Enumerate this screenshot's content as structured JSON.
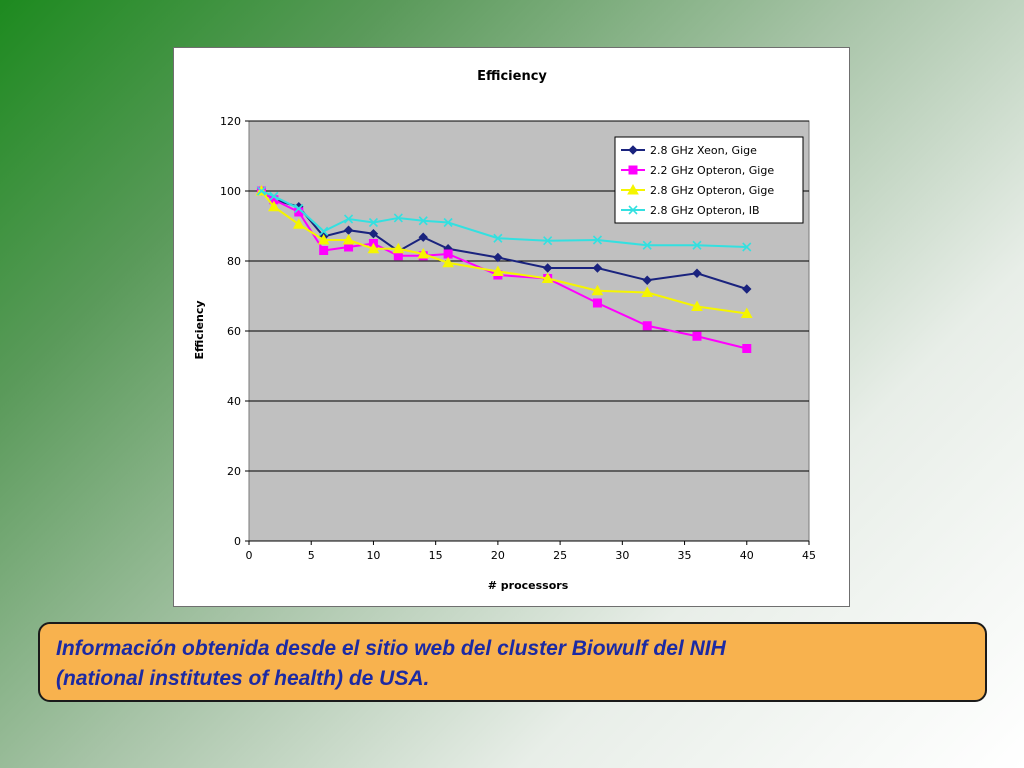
{
  "caption": {
    "line1": "Información obtenida desde el sitio web del cluster Biowulf del NIH",
    "line2": "(national institutes of health) de USA."
  },
  "chart_data": {
    "type": "line",
    "title": "Efficiency",
    "xlabel": "# processors",
    "ylabel": "Efficiency",
    "xlim": [
      0,
      45
    ],
    "ylim": [
      0,
      120
    ],
    "xticks": [
      0,
      5,
      10,
      15,
      20,
      25,
      30,
      35,
      40,
      45
    ],
    "yticks": [
      0,
      20,
      40,
      60,
      80,
      100,
      120
    ],
    "grid": "horizontal",
    "legend_position": "top-right",
    "plot_background": "#c0c0c0",
    "series": [
      {
        "name": "2.8 GHz Xeon, Gige",
        "color": "#1a237e",
        "marker": "diamond",
        "x": [
          1,
          2,
          4,
          6,
          8,
          10,
          12,
          14,
          16,
          20,
          24,
          28,
          32,
          36,
          40
        ],
        "y": [
          100,
          97.5,
          95.5,
          87,
          88.8,
          87.8,
          82.8,
          86.8,
          83.5,
          81,
          78,
          78,
          74.5,
          76.5,
          72
        ]
      },
      {
        "name": "2.2 GHz Opteron, Gige",
        "color": "#ff00ff",
        "marker": "square",
        "x": [
          1,
          2,
          4,
          6,
          8,
          10,
          12,
          14,
          16,
          20,
          24,
          28,
          32,
          36,
          40
        ],
        "y": [
          100,
          97.5,
          94,
          83,
          84,
          85,
          81.5,
          81.5,
          82,
          76,
          75,
          68,
          61.5,
          58.5,
          55
        ]
      },
      {
        "name": "2.8 GHz Opteron, Gige",
        "color": "#f5f500",
        "marker": "triangle",
        "x": [
          1,
          2,
          4,
          6,
          8,
          10,
          12,
          14,
          16,
          20,
          24,
          28,
          32,
          36,
          40
        ],
        "y": [
          100,
          95.5,
          90.5,
          86,
          86,
          83.5,
          83.5,
          82,
          79.5,
          77,
          75,
          71.5,
          71,
          67,
          65
        ]
      },
      {
        "name": "2.8 GHz Opteron, IB",
        "color": "#33e0e0",
        "marker": "x",
        "x": [
          1,
          2,
          4,
          6,
          8,
          10,
          12,
          14,
          16,
          20,
          24,
          28,
          32,
          36,
          40
        ],
        "y": [
          100,
          98.5,
          95,
          88.5,
          92,
          91,
          92.3,
          91.5,
          91,
          86.5,
          85.8,
          86,
          84.5,
          84.5,
          84
        ]
      }
    ]
  }
}
